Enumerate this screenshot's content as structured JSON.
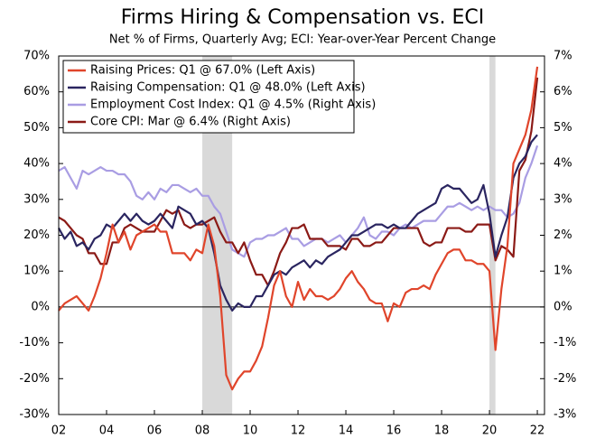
{
  "chart_data": {
    "type": "line",
    "title": "Firms Hiring & Compensation vs. ECI",
    "subtitle": "Net % of Firms, Quarterly Avg; ECI: Year-over-Year Percent Change",
    "x": [
      2002,
      2002.25,
      2002.5,
      2002.75,
      2003,
      2003.25,
      2003.5,
      2003.75,
      2004,
      2004.25,
      2004.5,
      2004.75,
      2005,
      2005.25,
      2005.5,
      2005.75,
      2006,
      2006.25,
      2006.5,
      2006.75,
      2007,
      2007.25,
      2007.5,
      2007.75,
      2008,
      2008.25,
      2008.5,
      2008.75,
      2009,
      2009.25,
      2009.5,
      2009.75,
      2010,
      2010.25,
      2010.5,
      2010.75,
      2011,
      2011.25,
      2011.5,
      2011.75,
      2012,
      2012.25,
      2012.5,
      2012.75,
      2013,
      2013.25,
      2013.5,
      2013.75,
      2014,
      2014.25,
      2014.5,
      2014.75,
      2015,
      2015.25,
      2015.5,
      2015.75,
      2016,
      2016.25,
      2016.5,
      2016.75,
      2017,
      2017.25,
      2017.5,
      2017.75,
      2018,
      2018.25,
      2018.5,
      2018.75,
      2019,
      2019.25,
      2019.5,
      2019.75,
      2020,
      2020.25,
      2020.5,
      2020.75,
      2021,
      2021.25,
      2021.5,
      2021.75,
      2022
    ],
    "series": [
      {
        "name": "Raising Prices: Q1 @ 67.0% (Left Axis)",
        "color": "#e0452b",
        "axis": "y",
        "values": [
          -1,
          1,
          2,
          3,
          1,
          -1,
          3,
          8,
          15,
          23,
          18,
          21,
          16,
          20,
          21,
          22,
          23,
          21,
          21,
          15,
          15,
          15,
          13,
          16,
          15,
          23,
          17,
          3,
          -19,
          -23,
          -20,
          -18,
          -18,
          -15,
          -11,
          -3,
          6,
          10,
          3,
          0,
          7,
          2,
          5,
          3,
          3,
          2,
          3,
          5,
          8,
          10,
          7,
          5,
          2,
          1,
          1,
          -4,
          1,
          0,
          4,
          5,
          5,
          6,
          5,
          9,
          12,
          15,
          16,
          16,
          13,
          13,
          12,
          12,
          10,
          -12,
          5,
          17,
          40,
          44,
          48,
          55,
          67
        ]
      },
      {
        "name": "Raising Compensation: Q1 @ 48.0% (Left Axis)",
        "color": "#2a2560",
        "axis": "y",
        "values": [
          22,
          19,
          21,
          17,
          18,
          16,
          19,
          20,
          23,
          22,
          24,
          26,
          24,
          26,
          24,
          23,
          24,
          26,
          24,
          22,
          28,
          27,
          26,
          23,
          24,
          22,
          15,
          6,
          2,
          -1,
          1,
          0,
          0,
          3,
          3,
          6,
          9,
          10,
          9,
          11,
          12,
          13,
          11,
          13,
          12,
          14,
          15,
          16,
          18,
          20,
          20,
          21,
          22,
          23,
          23,
          22,
          23,
          22,
          22,
          24,
          26,
          27,
          28,
          29,
          33,
          34,
          33,
          33,
          31,
          29,
          30,
          34,
          26,
          14,
          20,
          25,
          36,
          40,
          42,
          46,
          48
        ]
      },
      {
        "name": "Employment Cost Index: Q1 @ 4.5% (Right Axis)",
        "color": "#a99de3",
        "axis": "y2",
        "values": [
          3.8,
          3.9,
          3.6,
          3.3,
          3.8,
          3.7,
          3.8,
          3.9,
          3.8,
          3.8,
          3.7,
          3.7,
          3.5,
          3.1,
          3.0,
          3.2,
          3.0,
          3.3,
          3.2,
          3.4,
          3.4,
          3.3,
          3.2,
          3.3,
          3.1,
          3.1,
          2.8,
          2.6,
          2.1,
          1.6,
          1.5,
          1.4,
          1.8,
          1.9,
          1.9,
          2.0,
          2.0,
          2.1,
          2.2,
          1.9,
          1.9,
          1.7,
          1.8,
          1.9,
          1.9,
          1.8,
          1.9,
          2.0,
          1.8,
          2.0,
          2.2,
          2.5,
          2.0,
          1.9,
          2.1,
          2.1,
          2.0,
          2.2,
          2.3,
          2.2,
          2.3,
          2.4,
          2.4,
          2.4,
          2.6,
          2.8,
          2.8,
          2.9,
          2.8,
          2.7,
          2.8,
          2.7,
          2.8,
          2.7,
          2.7,
          2.5,
          2.6,
          2.9,
          3.6,
          4.0,
          4.5
        ]
      },
      {
        "name": "Core CPI: Mar @ 6.4% (Right Axis)",
        "color": "#8b1a16",
        "axis": "y2",
        "values": [
          2.5,
          2.4,
          2.2,
          2.0,
          1.9,
          1.5,
          1.5,
          1.2,
          1.2,
          1.8,
          1.8,
          2.2,
          2.3,
          2.2,
          2.1,
          2.1,
          2.1,
          2.4,
          2.7,
          2.6,
          2.7,
          2.3,
          2.2,
          2.3,
          2.3,
          2.4,
          2.5,
          2.1,
          1.8,
          1.8,
          1.5,
          1.8,
          1.3,
          0.9,
          0.9,
          0.6,
          1.0,
          1.5,
          1.8,
          2.2,
          2.2,
          2.3,
          1.9,
          1.9,
          1.9,
          1.7,
          1.7,
          1.7,
          1.6,
          1.9,
          1.9,
          1.7,
          1.7,
          1.8,
          1.8,
          2.0,
          2.2,
          2.2,
          2.2,
          2.2,
          2.2,
          1.8,
          1.7,
          1.8,
          1.8,
          2.2,
          2.2,
          2.2,
          2.1,
          2.1,
          2.3,
          2.3,
          2.3,
          1.3,
          1.7,
          1.6,
          1.4,
          3.8,
          4.1,
          4.9,
          6.4
        ]
      }
    ],
    "shaded_periods": [
      {
        "start": 2008,
        "end": 2009.25
      },
      {
        "start": 2020,
        "end": 2020.25
      }
    ],
    "shade_color": "#d9d9d9",
    "xlim": [
      2002,
      2022.3
    ],
    "xticks": [
      {
        "value": 2002,
        "label": "02"
      },
      {
        "value": 2004,
        "label": "04"
      },
      {
        "value": 2006,
        "label": "06"
      },
      {
        "value": 2008,
        "label": "08"
      },
      {
        "value": 2010,
        "label": "10"
      },
      {
        "value": 2012,
        "label": "12"
      },
      {
        "value": 2014,
        "label": "14"
      },
      {
        "value": 2016,
        "label": "16"
      },
      {
        "value": 2018,
        "label": "18"
      },
      {
        "value": 2020,
        "label": "20"
      },
      {
        "value": 2022,
        "label": "22"
      }
    ],
    "ylim": [
      -30,
      70
    ],
    "yticks": [
      {
        "value": -30,
        "label": "-30%"
      },
      {
        "value": -20,
        "label": "-20%"
      },
      {
        "value": -10,
        "label": "-10%"
      },
      {
        "value": 0,
        "label": "0%"
      },
      {
        "value": 10,
        "label": "10%"
      },
      {
        "value": 20,
        "label": "20%"
      },
      {
        "value": 30,
        "label": "30%"
      },
      {
        "value": 40,
        "label": "40%"
      },
      {
        "value": 50,
        "label": "50%"
      },
      {
        "value": 60,
        "label": "60%"
      },
      {
        "value": 70,
        "label": "70%"
      }
    ],
    "y2lim": [
      -3,
      7
    ],
    "y2ticks": [
      {
        "value": -3,
        "label": "-3%"
      },
      {
        "value": -2,
        "label": "-2%"
      },
      {
        "value": -1,
        "label": "-1%"
      },
      {
        "value": 0,
        "label": "0%"
      },
      {
        "value": 1,
        "label": "1%"
      },
      {
        "value": 2,
        "label": "2%"
      },
      {
        "value": 3,
        "label": "3%"
      },
      {
        "value": 4,
        "label": "4%"
      },
      {
        "value": 5,
        "label": "5%"
      },
      {
        "value": 6,
        "label": "6%"
      },
      {
        "value": 7,
        "label": "7%"
      }
    ],
    "legend": "top-left"
  }
}
